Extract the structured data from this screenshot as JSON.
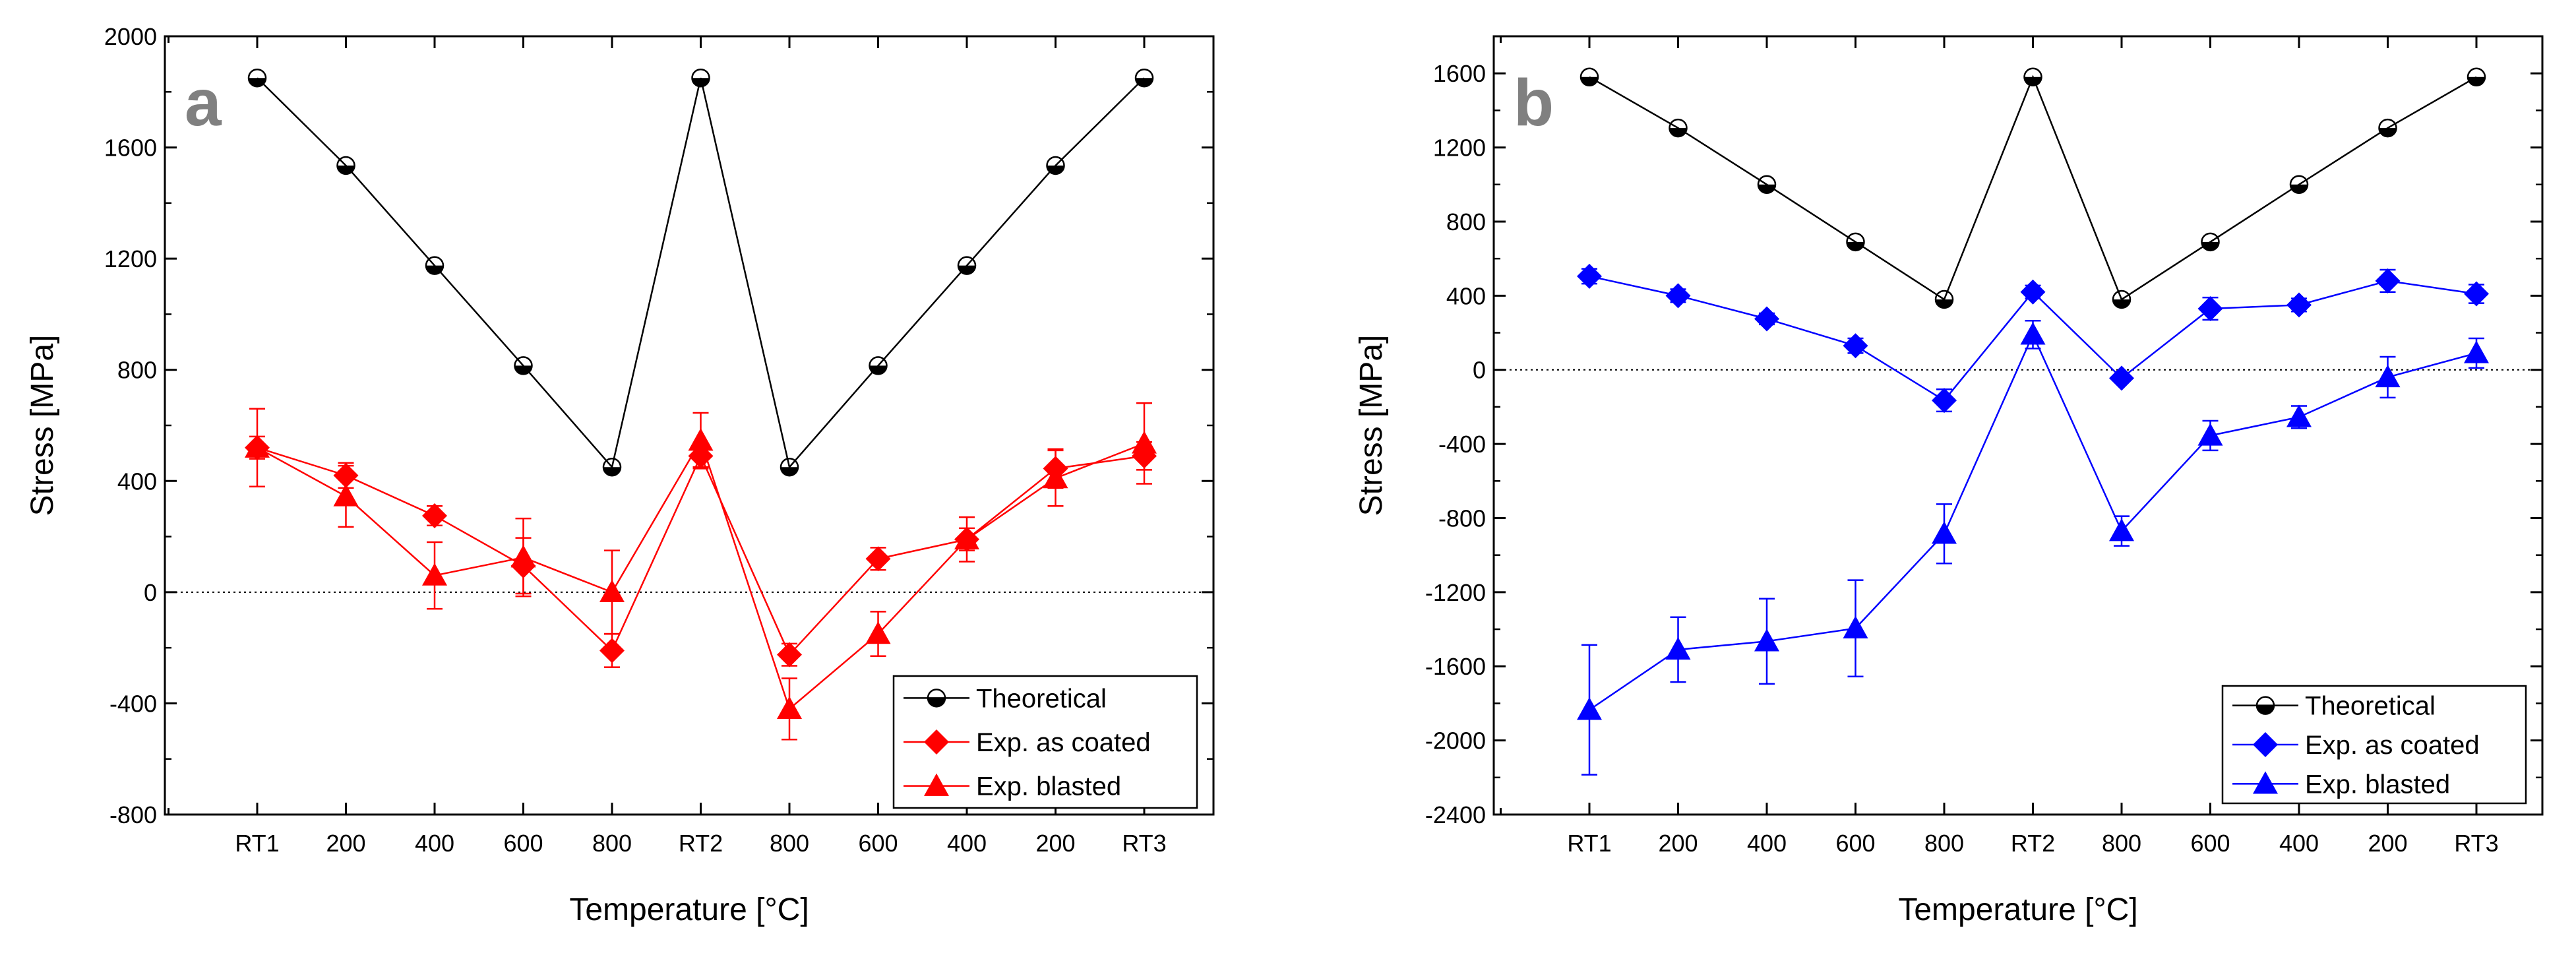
{
  "chart_data": [
    {
      "type": "line",
      "panel_label": "a",
      "xlabel": "Temperature [°C]",
      "ylabel": "Stress [MPa]",
      "categories": [
        "RT1",
        "200",
        "400",
        "600",
        "800",
        "RT2",
        "800",
        "600",
        "400",
        "200",
        "RT3"
      ],
      "ylim": [
        -800,
        2000
      ],
      "yticks": [
        -800,
        -400,
        0,
        400,
        800,
        1200,
        1600,
        2000
      ],
      "zero_reference_line": "dotted",
      "grid": false,
      "legend_position": "bottom-right",
      "series": [
        {
          "name": "Theoretical",
          "marker": "half-filled-circle",
          "color": "#000000",
          "values": [
            1850,
            1535,
            1175,
            815,
            450,
            1850,
            450,
            815,
            1175,
            1535,
            1850
          ],
          "errors": [
            0,
            0,
            0,
            0,
            0,
            0,
            0,
            0,
            0,
            0,
            0
          ]
        },
        {
          "name": "Exp. as coated",
          "marker": "diamond",
          "color": "#ff0000",
          "values": [
            520,
            420,
            275,
            95,
            -210,
            490,
            -225,
            120,
            190,
            445,
            490
          ],
          "errors": [
            40,
            45,
            35,
            100,
            60,
            40,
            40,
            40,
            40,
            70,
            50
          ]
        },
        {
          "name": "Exp. blasted",
          "marker": "triangle",
          "color": "#ff0000",
          "values": [
            520,
            345,
            60,
            125,
            0,
            545,
            -420,
            -150,
            190,
            410,
            535
          ],
          "errors": [
            140,
            110,
            120,
            140,
            150,
            100,
            110,
            80,
            80,
            100,
            145
          ]
        }
      ]
    },
    {
      "type": "line",
      "panel_label": "b",
      "xlabel": "Temperature [°C]",
      "ylabel": "Stress [MPa]",
      "categories": [
        "RT1",
        "200",
        "400",
        "600",
        "800",
        "RT2",
        "800",
        "600",
        "400",
        "200",
        "RT3"
      ],
      "ylim": [
        -2400,
        1800
      ],
      "yticks": [
        -2400,
        -2000,
        -1600,
        -1200,
        -800,
        -400,
        0,
        400,
        800,
        1200,
        1600
      ],
      "zero_reference_line": "dotted",
      "grid": false,
      "legend_position": "bottom-right",
      "series": [
        {
          "name": "Theoretical",
          "marker": "half-filled-circle",
          "color": "#000000",
          "values": [
            1580,
            1305,
            1000,
            690,
            380,
            1580,
            380,
            690,
            1000,
            1305,
            1580
          ],
          "errors": [
            0,
            0,
            0,
            0,
            0,
            0,
            0,
            0,
            0,
            0,
            0
          ]
        },
        {
          "name": "Exp. as coated",
          "marker": "diamond",
          "color": "#0000ff",
          "values": [
            505,
            400,
            275,
            130,
            -165,
            420,
            -45,
            330,
            350,
            480,
            410
          ],
          "errors": [
            40,
            35,
            30,
            40,
            60,
            35,
            20,
            60,
            35,
            60,
            50
          ]
        },
        {
          "name": "Exp. blasted",
          "marker": "triangle",
          "color": "#0000ff",
          "values": [
            -1835,
            -1510,
            -1465,
            -1395,
            -885,
            190,
            -870,
            -355,
            -255,
            -40,
            90
          ],
          "errors": [
            350,
            175,
            230,
            260,
            160,
            75,
            80,
            80,
            60,
            110,
            80
          ]
        }
      ]
    }
  ]
}
